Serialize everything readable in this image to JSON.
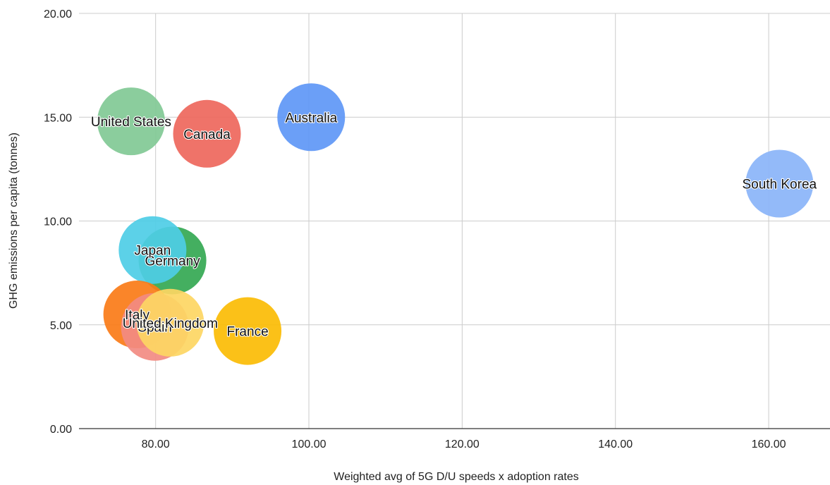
{
  "chart_data": {
    "type": "scatter",
    "subtype": "bubble",
    "title": "",
    "xlabel": "Weighted avg of 5G D/U speeds x adoption rates",
    "ylabel": "GHG emissions per capita (tonnes)",
    "xlim": [
      70,
      168
    ],
    "ylim": [
      0,
      20
    ],
    "x_ticks": [
      80,
      100,
      120,
      140,
      160
    ],
    "y_ticks": [
      0,
      5,
      10,
      15,
      20
    ],
    "x_tick_labels": [
      "80.00",
      "100.00",
      "120.00",
      "140.00",
      "160.00"
    ],
    "y_tick_labels": [
      "0.00",
      "5.00",
      "10.00",
      "15.00",
      "20.00"
    ],
    "grid": true,
    "legend": "none",
    "points": [
      {
        "name": "United States",
        "x": 76.8,
        "y": 14.8,
        "color": "#81c995"
      },
      {
        "name": "Canada",
        "x": 86.7,
        "y": 14.2,
        "color": "#ee675c"
      },
      {
        "name": "Australia",
        "x": 100.3,
        "y": 15.0,
        "color": "#5e97f6"
      },
      {
        "name": "South Korea",
        "x": 161.4,
        "y": 11.8,
        "color": "#8ab4f8"
      },
      {
        "name": "Germany",
        "x": 82.2,
        "y": 8.1,
        "color": "#34a853"
      },
      {
        "name": "Japan",
        "x": 79.6,
        "y": 8.6,
        "color": "#4ecde6"
      },
      {
        "name": "Italy",
        "x": 77.6,
        "y": 5.5,
        "color": "#fa7b17"
      },
      {
        "name": "Spain",
        "x": 79.9,
        "y": 4.9,
        "color": "#f28b82"
      },
      {
        "name": "United Kingdom",
        "x": 81.9,
        "y": 5.1,
        "color": "#fdd663"
      },
      {
        "name": "France",
        "x": 92.0,
        "y": 4.7,
        "color": "#fbbc04"
      }
    ]
  }
}
